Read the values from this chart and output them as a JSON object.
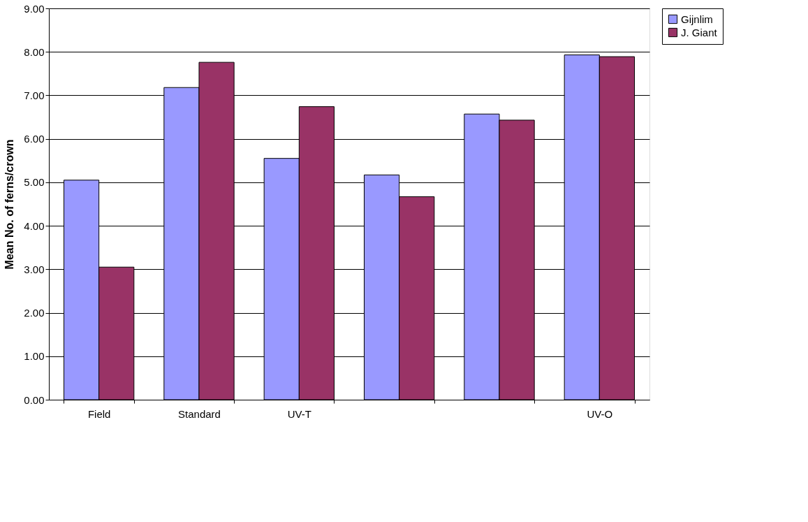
{
  "chart_data": {
    "type": "bar",
    "ylabel": "Mean No. of ferns/crown",
    "categories": [
      "Field",
      "Standard",
      "UV-T",
      null,
      null,
      "UV-O"
    ],
    "series": [
      {
        "name": "Gijnlim",
        "color": "#9999ff",
        "values": [
          5.05,
          7.18,
          5.55,
          5.17,
          6.57,
          7.93
        ]
      },
      {
        "name": "J. Giant",
        "color": "#993366",
        "values": [
          3.05,
          7.76,
          6.74,
          4.67,
          6.43,
          7.89
        ]
      }
    ],
    "ylim": [
      0,
      9
    ],
    "yticks": [
      {
        "value": 0,
        "label": "0.00"
      },
      {
        "value": 1,
        "label": "1.00"
      },
      {
        "value": 2,
        "label": "2.00"
      },
      {
        "value": 3,
        "label": "3.00"
      },
      {
        "value": 4,
        "label": "4.00"
      },
      {
        "value": 5,
        "label": "5.00"
      },
      {
        "value": 6,
        "label": "6.00"
      },
      {
        "value": 7,
        "label": "7.00"
      },
      {
        "value": 8,
        "label": "8.00"
      },
      {
        "value": 9,
        "label": "9.00"
      }
    ],
    "grid": "y",
    "legend": "right"
  }
}
